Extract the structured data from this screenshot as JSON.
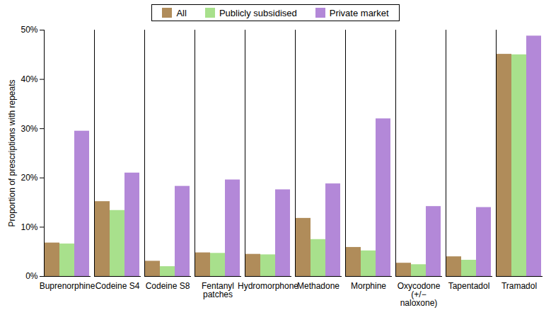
{
  "chart_data": {
    "type": "bar",
    "categories": [
      "Buprenorphine",
      "Codeine S4",
      "Codeine S8",
      "Fentanyl\npatches",
      "Hydromorphone",
      "Methadone",
      "Morphine",
      "Oxycodone\n(+/−\nnaloxone)",
      "Tapentadol",
      "Tramadol"
    ],
    "series": [
      {
        "name": "All",
        "color": "#b08c5a",
        "values": [
          6.8,
          15.2,
          3.1,
          4.8,
          4.5,
          11.8,
          5.9,
          2.7,
          4.0,
          45.1
        ]
      },
      {
        "name": "Publicly subsidised",
        "color": "#a8e08c",
        "values": [
          6.6,
          13.4,
          2.0,
          4.7,
          4.4,
          7.5,
          5.2,
          2.4,
          3.3,
          45.0
        ]
      },
      {
        "name": "Private market",
        "color": "#b388d8",
        "values": [
          29.5,
          21.0,
          18.3,
          19.6,
          17.6,
          18.8,
          32.0,
          14.2,
          14.0,
          48.8
        ]
      }
    ],
    "y_label": "Proportion of prescriptions with repeats",
    "ylim": [
      0,
      50
    ],
    "yticks": [
      {
        "value": 0,
        "label": "0%"
      },
      {
        "value": 10,
        "label": "10%"
      },
      {
        "value": 20,
        "label": "20%"
      },
      {
        "value": 30,
        "label": "30%"
      },
      {
        "value": 40,
        "label": "40%"
      },
      {
        "value": 50,
        "label": "50%"
      }
    ],
    "legend": "top",
    "grid": false
  }
}
